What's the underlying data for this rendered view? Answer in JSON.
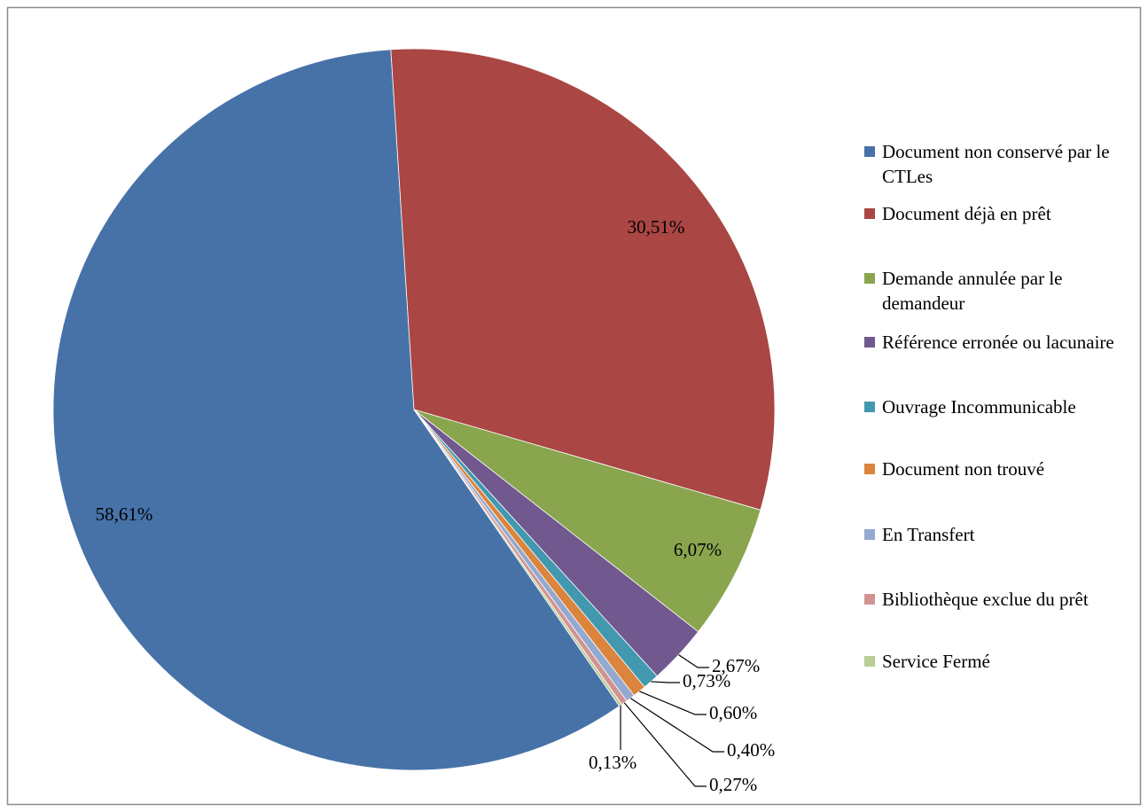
{
  "chart_data": {
    "type": "pie",
    "categories": [
      "Document non conservé par le CTLes",
      "Document déjà en prêt",
      "Demande annulée par le demandeur",
      "Référence erronée ou lacunaire",
      "Ouvrage Incommunicable",
      "Document non trouvé",
      "En Transfert",
      "Bibliothèque exclue du prêt",
      "Service Fermé"
    ],
    "values": [
      58.61,
      30.51,
      6.07,
      2.67,
      0.73,
      0.6,
      0.4,
      0.27,
      0.13
    ],
    "value_labels": [
      "58,61%",
      "30,51%",
      "6,07%",
      "2,67%",
      "0,73%",
      "0,60%",
      "0,40%",
      "0,27%",
      "0,13%"
    ],
    "colors": [
      "#4672a8",
      "#aa4643",
      "#89a54e",
      "#71588f",
      "#4198af",
      "#db843d",
      "#93a9cf",
      "#d19392",
      "#b9cd96"
    ],
    "legend": "right"
  }
}
